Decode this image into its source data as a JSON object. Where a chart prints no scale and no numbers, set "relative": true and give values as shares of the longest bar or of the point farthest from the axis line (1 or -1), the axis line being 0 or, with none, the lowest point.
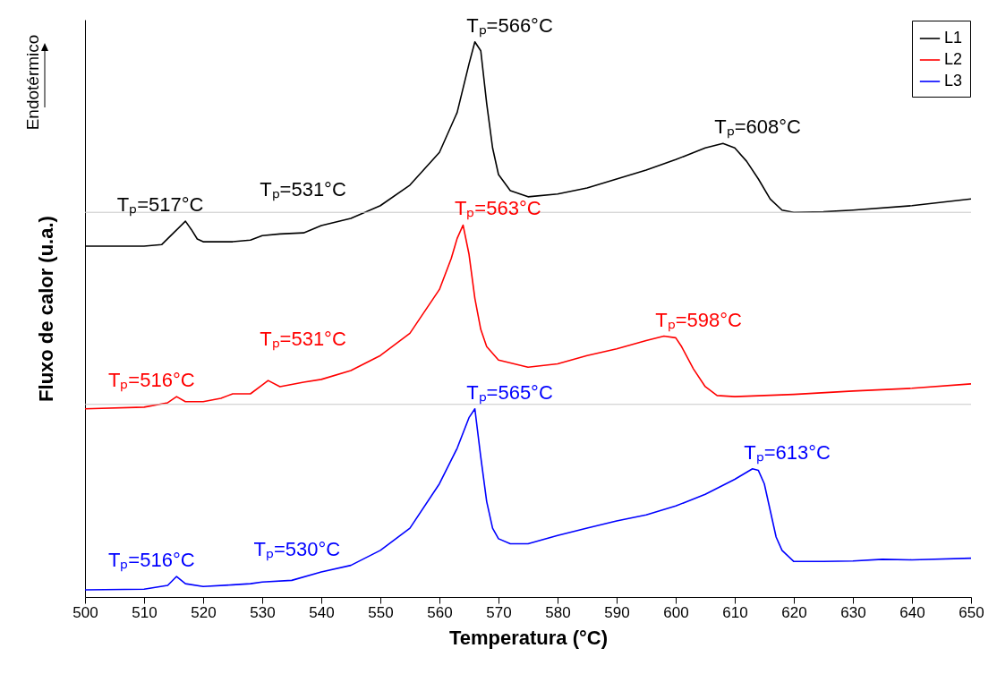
{
  "chart_data": {
    "type": "line",
    "relative": true,
    "xlabel": "Temperatura (°C)",
    "ylabel": "Fluxo de calor (u.a.)",
    "xlim": [
      500,
      650
    ],
    "xticks": [
      500,
      510,
      520,
      530,
      540,
      550,
      560,
      570,
      580,
      590,
      600,
      610,
      620,
      630,
      640,
      650
    ],
    "legend": "top right",
    "line_style": "solid",
    "marker": "none",
    "ref_lines": [
      {
        "axis": "y",
        "value": 0.693,
        "color": "#c8c8c8"
      },
      {
        "axis": "y",
        "value": 0.347,
        "color": "#c8c8c8"
      }
    ],
    "series": [
      {
        "name": "L1",
        "color": "#000000",
        "x": [
          500,
          510,
          513,
          515,
          517,
          518,
          519,
          520,
          525,
          528,
          530,
          533,
          537,
          540,
          545,
          550,
          555,
          560,
          563,
          565,
          566,
          567,
          568,
          569,
          570,
          572,
          575,
          580,
          585,
          590,
          595,
          600,
          605,
          608,
          610,
          612,
          614,
          616,
          618,
          620,
          625,
          630,
          640,
          650
        ],
        "values": [
          0.632,
          0.632,
          0.635,
          0.656,
          0.677,
          0.662,
          0.645,
          0.64,
          0.64,
          0.643,
          0.651,
          0.654,
          0.656,
          0.669,
          0.682,
          0.705,
          0.742,
          0.801,
          0.873,
          0.96,
          1,
          0.984,
          0.889,
          0.809,
          0.761,
          0.732,
          0.721,
          0.726,
          0.737,
          0.753,
          0.769,
          0.788,
          0.809,
          0.817,
          0.809,
          0.785,
          0.753,
          0.717,
          0.697,
          0.693,
          0.694,
          0.697,
          0.705,
          0.717
        ]
      },
      {
        "name": "L2",
        "color": "#ff0000",
        "x": [
          500,
          510,
          514,
          515.5,
          517,
          520,
          523,
          525,
          528,
          530,
          531,
          533,
          537,
          540,
          545,
          550,
          555,
          560,
          562,
          563,
          564,
          565,
          566,
          567,
          568,
          570,
          575,
          580,
          585,
          590,
          595,
          598,
          600,
          601,
          603,
          605,
          607,
          610,
          620,
          630,
          640,
          650
        ],
        "values": [
          0.339,
          0.342,
          0.35,
          0.361,
          0.352,
          0.352,
          0.358,
          0.366,
          0.366,
          0.382,
          0.39,
          0.379,
          0.387,
          0.392,
          0.408,
          0.435,
          0.475,
          0.554,
          0.61,
          0.646,
          0.67,
          0.618,
          0.538,
          0.482,
          0.451,
          0.427,
          0.414,
          0.42,
          0.435,
          0.447,
          0.462,
          0.47,
          0.467,
          0.451,
          0.411,
          0.379,
          0.363,
          0.361,
          0.365,
          0.371,
          0.376,
          0.384
        ]
      },
      {
        "name": "L3",
        "color": "#0000ff",
        "x": [
          500,
          510,
          514,
          515.5,
          517,
          520,
          525,
          528,
          530,
          535,
          540,
          545,
          550,
          555,
          560,
          563,
          565,
          566,
          567,
          568,
          569,
          570,
          572,
          575,
          580,
          585,
          590,
          595,
          600,
          605,
          610,
          613,
          614,
          615,
          616,
          617,
          618,
          620,
          625,
          630,
          635,
          640,
          650
        ],
        "values": [
          0.013,
          0.014,
          0.021,
          0.037,
          0.024,
          0.019,
          0.022,
          0.024,
          0.027,
          0.03,
          0.045,
          0.057,
          0.084,
          0.124,
          0.204,
          0.268,
          0.323,
          0.339,
          0.252,
          0.172,
          0.124,
          0.105,
          0.096,
          0.096,
          0.111,
          0.124,
          0.137,
          0.148,
          0.164,
          0.185,
          0.212,
          0.231,
          0.228,
          0.204,
          0.156,
          0.108,
          0.084,
          0.064,
          0.064,
          0.065,
          0.068,
          0.067,
          0.07
        ]
      }
    ],
    "annotations": [
      "Endotérmico",
      {
        "text": "Tₚ=517°C",
        "x": 517,
        "y": 0.677
      },
      {
        "text": "Tₚ=531°C",
        "x": 531,
        "y": 0.653
      },
      {
        "text": "Tₚ=566°C",
        "x": 566,
        "y": 1
      },
      {
        "text": "Tₚ=608°C",
        "x": 608,
        "y": 0.817
      },
      {
        "text": "Tₚ=516°C",
        "x": 515.5,
        "y": 0.361
      },
      {
        "text": "Tₚ=531°C",
        "x": 531,
        "y": 0.39
      },
      {
        "text": "Tₚ=563°C",
        "x": 564,
        "y": 0.67
      },
      {
        "text": "Tₚ=598°C",
        "x": 598,
        "y": 0.47
      },
      {
        "text": "Tₚ=516°C",
        "x": 515.5,
        "y": 0.037
      },
      {
        "text": "Tₚ=530°C",
        "x": 530,
        "y": 0.027
      },
      {
        "text": "Tₚ=565°C",
        "x": 566,
        "y": 0.339
      },
      {
        "text": "Tₚ=613°C",
        "x": 613,
        "y": 0.231
      }
    ]
  }
}
